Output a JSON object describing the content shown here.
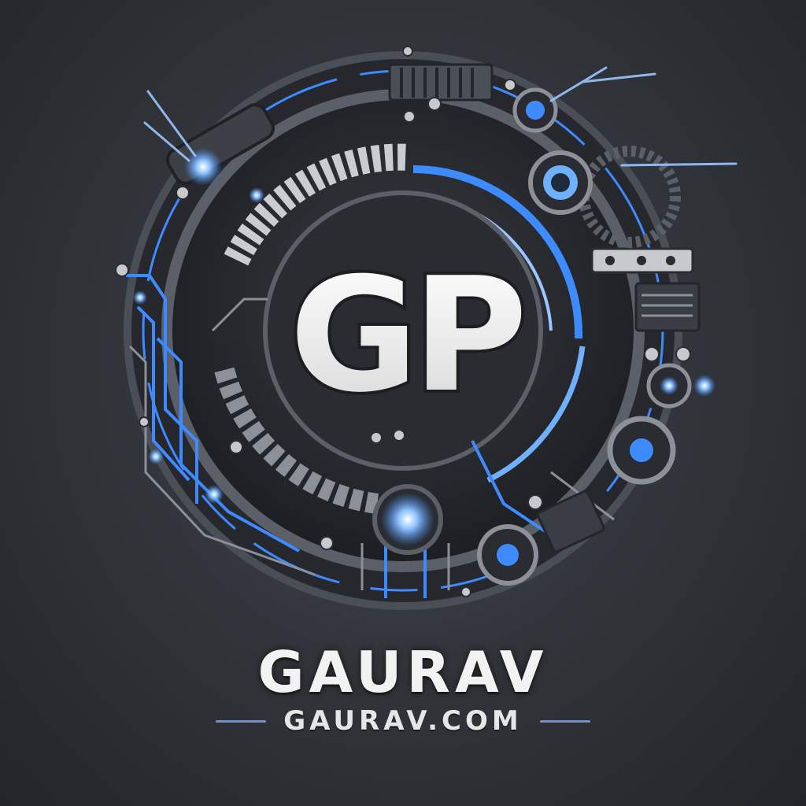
{
  "logo": {
    "monogram": "GP",
    "wordmark": "GAURAV",
    "domain": "GAURAV.COM"
  },
  "colors": {
    "accent": "#3d8bff",
    "glow": "#8fc3ff",
    "metal": "#2b2e34",
    "steel": "#8b9099",
    "text": "#f2f2f2"
  }
}
